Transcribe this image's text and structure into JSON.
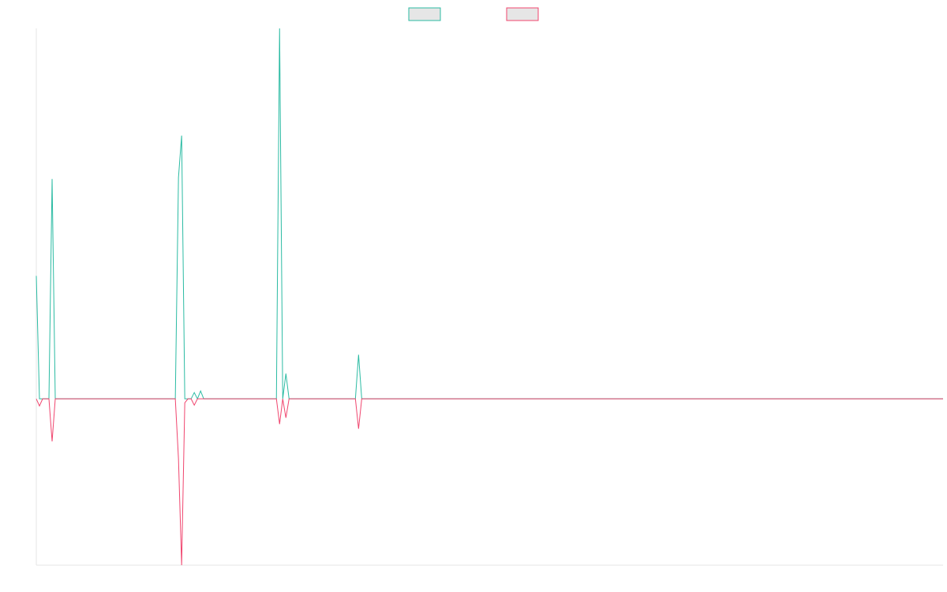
{
  "chart_data": {
    "type": "line",
    "title": "",
    "xlabel": "",
    "ylabel": "",
    "x": [
      0,
      1,
      2,
      3,
      4,
      5,
      6,
      7,
      8,
      9,
      10,
      11,
      12,
      13,
      14,
      15,
      16,
      17,
      18,
      19,
      20,
      21,
      22,
      23,
      24,
      25,
      26,
      27,
      28,
      29,
      30,
      31,
      32,
      33,
      34,
      35,
      36,
      37,
      38,
      39,
      40,
      41,
      42,
      43,
      44,
      45,
      46,
      47,
      48,
      49,
      50,
      51,
      52,
      53,
      54,
      55,
      56,
      57,
      58,
      59,
      60,
      61,
      62,
      63,
      64,
      65,
      66,
      67,
      68,
      69,
      70,
      71,
      72,
      73,
      74,
      75,
      76,
      77,
      78,
      79,
      80,
      81,
      82,
      83,
      84,
      85,
      86,
      87,
      88,
      89,
      90,
      91,
      92,
      93,
      94,
      95,
      96,
      97,
      98,
      99,
      100,
      101,
      102,
      103,
      104,
      105,
      106,
      107,
      108,
      109,
      110,
      111,
      112,
      113,
      114,
      115,
      116,
      117,
      118,
      119,
      120,
      121,
      122,
      123,
      124,
      125,
      126,
      127,
      128,
      129,
      130,
      131,
      132,
      133,
      134,
      135,
      136,
      137,
      138,
      139,
      140,
      141,
      142,
      143,
      144,
      145,
      146,
      147,
      148,
      149,
      150,
      151,
      152,
      153,
      154,
      155,
      156,
      157,
      158,
      159,
      160,
      161,
      162,
      163,
      164,
      165,
      166,
      167,
      168,
      169,
      170,
      171,
      172,
      173,
      174,
      175,
      176,
      177,
      178,
      179,
      180,
      181,
      182,
      183,
      184,
      185,
      186,
      187,
      188,
      189,
      190,
      191,
      192,
      193,
      194,
      195,
      196,
      197,
      198,
      199,
      200,
      201,
      202,
      203,
      204,
      205,
      206,
      207,
      208,
      209,
      210,
      211,
      212,
      213,
      214,
      215,
      216,
      217,
      218,
      219,
      220,
      221,
      222,
      223,
      224,
      225,
      226,
      227,
      228,
      229,
      230,
      231,
      232,
      233,
      234,
      235,
      236,
      237,
      238,
      239,
      240,
      241,
      242,
      243,
      244,
      245,
      246,
      247,
      248,
      249,
      250,
      251,
      252,
      253,
      254,
      255,
      256,
      257,
      258,
      259,
      260,
      261,
      262,
      263,
      264,
      265,
      266,
      267,
      268,
      269,
      270,
      271,
      272,
      273,
      274,
      275,
      276,
      277,
      278,
      279,
      280,
      281,
      282,
      283,
      284,
      285,
      286,
      287
    ],
    "spikes": [
      {
        "x": 0,
        "pos": 156,
        "neg": 0
      },
      {
        "x": 1,
        "pos": 0,
        "neg": 9
      },
      {
        "x": 5,
        "pos": 279,
        "neg": 54
      },
      {
        "x": 11,
        "pos": 0,
        "neg": 0
      },
      {
        "x": 44,
        "pos": 0,
        "neg": 0
      },
      {
        "x": 45,
        "pos": 281,
        "neg": 76
      },
      {
        "x": 46,
        "pos": 334,
        "neg": 211
      },
      {
        "x": 47,
        "pos": 0,
        "neg": 5
      },
      {
        "x": 50,
        "pos": 8,
        "neg": 8
      },
      {
        "x": 52,
        "pos": 10,
        "neg": 0
      },
      {
        "x": 77,
        "pos": 470,
        "neg": 32
      },
      {
        "x": 78,
        "pos": 0,
        "neg": 0
      },
      {
        "x": 79,
        "pos": 32,
        "neg": 24
      },
      {
        "x": 102,
        "pos": 56,
        "neg": 38
      }
    ],
    "series": [
      {
        "name": "",
        "color": "#2bbba3"
      },
      {
        "name": "",
        "color": "#f0456e"
      }
    ],
    "ylim": [
      -211,
      470
    ],
    "grid": false,
    "legend_position": "top-center"
  }
}
